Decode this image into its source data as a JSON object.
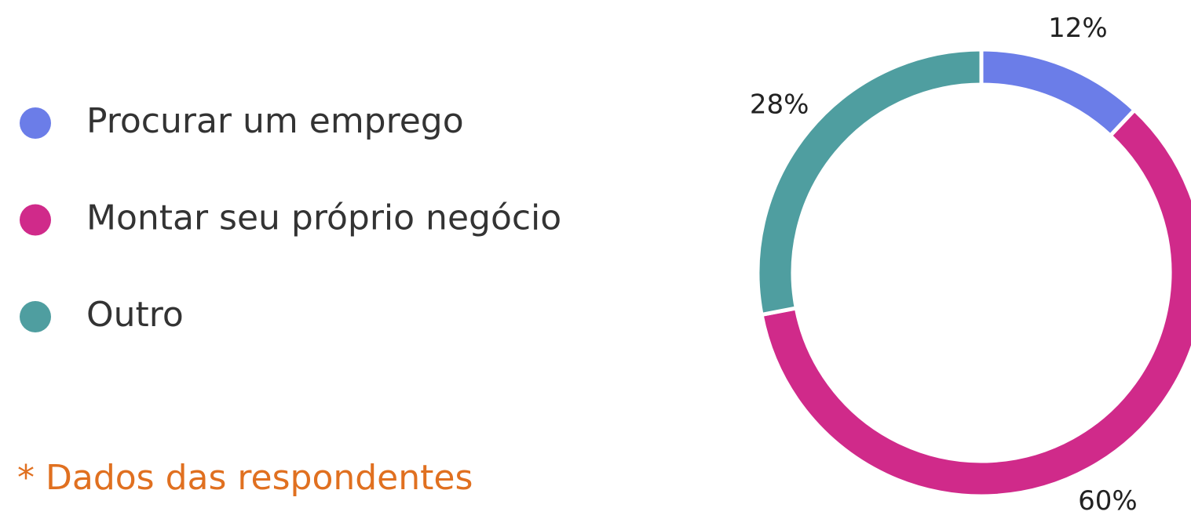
{
  "chart_data": {
    "type": "donut",
    "categories": [
      "Procurar um emprego",
      "Montar seu próprio negócio",
      "Outro"
    ],
    "values": [
      12,
      60,
      28
    ],
    "value_labels": [
      "12%",
      "60%",
      "28%"
    ],
    "colors": [
      "#6b7de8",
      "#d02a8a",
      "#4f9ea0"
    ],
    "legend": "left",
    "annotation": "* Dados das respondentes"
  }
}
